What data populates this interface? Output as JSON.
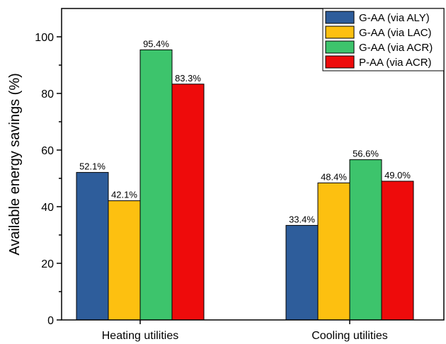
{
  "chart_data": {
    "type": "bar",
    "title": "",
    "xlabel": "",
    "ylabel": "Available energy savings (%)",
    "categories": [
      "Heating utilities",
      "Cooling utilities"
    ],
    "ylim": [
      0,
      110
    ],
    "yticks": [
      0,
      20,
      40,
      60,
      80,
      100
    ],
    "grid": false,
    "legend_position": "top-right",
    "series": [
      {
        "name": "G-AA (via ALY)",
        "color": "#2E5D9B",
        "values": [
          52.1,
          33.4
        ],
        "labels": [
          "52.1%",
          "33.4%"
        ]
      },
      {
        "name": "G-AA (via LAC)",
        "color": "#FDC010",
        "values": [
          42.1,
          48.4
        ],
        "labels": [
          "42.1%",
          "48.4%"
        ]
      },
      {
        "name": "G-AA (via ACR)",
        "color": "#3DC46C",
        "values": [
          95.4,
          56.6
        ],
        "labels": [
          "95.4%",
          "56.6%"
        ]
      },
      {
        "name": "P-AA (via ACR)",
        "color": "#EE0B0B",
        "values": [
          83.3,
          49.0
        ],
        "labels": [
          "83.3%",
          "49.0%"
        ]
      }
    ]
  }
}
